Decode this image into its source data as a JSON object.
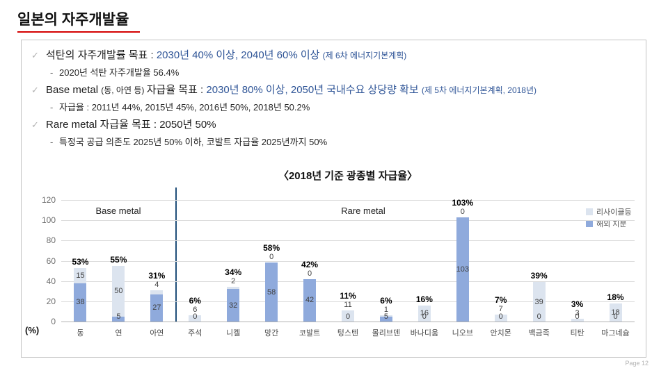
{
  "page": {
    "title": "일본의 자주개발율",
    "page_number": "Page 12"
  },
  "bullets": [
    {
      "marker": "✓",
      "segments": [
        {
          "text": "석탄의 자주개발률 목표 : "
        },
        {
          "text": "2030년 40% 이상, 2040년 60% 이상 "
        },
        {
          "text": "(제 6차 에너지기본계획)"
        }
      ]
    },
    {
      "marker": "-",
      "text": "2020년 석탄 자주개발율 56.4%"
    },
    {
      "marker": "✓",
      "segments": [
        {
          "text": "Base metal "
        },
        {
          "text": "(동, 아연 등) "
        },
        {
          "text": "자급율 목표 : "
        },
        {
          "text": "2030년 80% 이상, 2050년 국내수요 상당량 확보 "
        },
        {
          "text": "(제 5차 에너지기본계획, 2018년)"
        }
      ]
    },
    {
      "marker": "-",
      "text": "자급율 : 2011년 44%, 2015년 45%, 2016년 50%, 2018년 50.2%"
    },
    {
      "marker": "✓",
      "segments": [
        {
          "text": "Rare metal 자급율 목표 : 2050년 50%"
        }
      ]
    },
    {
      "marker": "-",
      "text": "특정국 공급 의존도 2025년 50% 이하, 코발트 자급율 2025년까지 50%"
    }
  ],
  "chart_data": {
    "type": "bar",
    "stacked": true,
    "title": "〈2018년 기준 광종별 자급율〉",
    "ylabel": "(%)",
    "ylim": [
      0,
      120
    ],
    "yticks": [
      0,
      20,
      40,
      60,
      80,
      100,
      120
    ],
    "grid": true,
    "legend_position": "top-right",
    "categories": [
      "동",
      "연",
      "아연",
      "주석",
      "니켈",
      "망간",
      "코발트",
      "텅스텐",
      "몰리브덴",
      "바나디움",
      "니오브",
      "안치몬",
      "백금족",
      "티탄",
      "마그네슘"
    ],
    "series": [
      {
        "name": "해외 지분",
        "color": "#8faadc",
        "values": [
          38,
          5,
          27,
          0,
          32,
          58,
          42,
          0,
          5,
          0,
          103,
          0,
          0,
          0,
          0
        ]
      },
      {
        "name": "리사이클등",
        "color": "#dce4ef",
        "values": [
          15,
          50,
          4,
          6,
          2,
          0,
          0,
          11,
          1,
          16,
          0,
          7,
          39,
          3,
          18
        ]
      }
    ],
    "totals_labels": [
      "53%",
      "55%",
      "31%",
      "6%",
      "34%",
      "58%",
      "42%",
      "11%",
      "6%",
      "16%",
      "103%",
      "7%",
      "39%",
      "3%",
      "18%"
    ],
    "group_labels": [
      {
        "text": "Base metal"
      },
      {
        "text": "Rare metal"
      }
    ],
    "legend": [
      {
        "label": "리사이클등",
        "color": "#dce4ef"
      },
      {
        "label": "해외 지분",
        "color": "#8faadc"
      }
    ]
  }
}
